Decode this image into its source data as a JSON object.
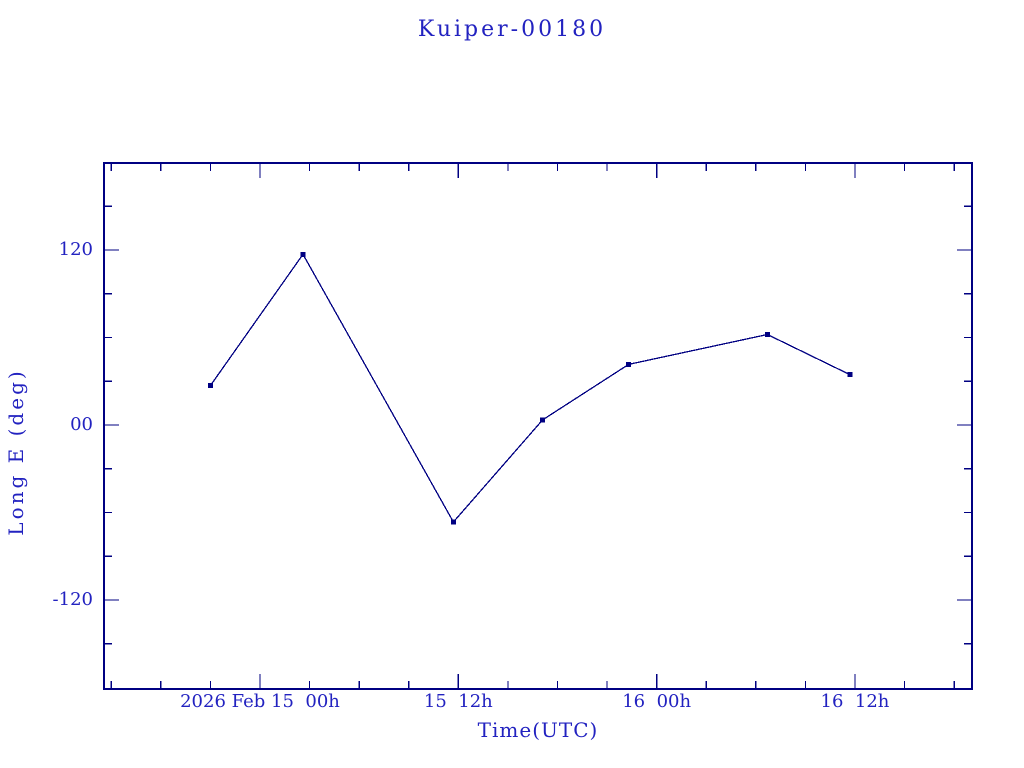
{
  "window": {
    "background": "#ffffff"
  },
  "chart_data": {
    "type": "line",
    "title": "Kuiper-00180",
    "xlabel": "Time(UTC)",
    "ylabel": "Long E (deg)",
    "grid": false,
    "legend": "none",
    "x_axis": {
      "unit": "hours relative to 2026 Feb 15 00h UTC",
      "range": [
        -9.5,
        43.14
      ],
      "major_ticks": [
        {
          "t": 0,
          "label": "2026 Feb 15  00h"
        },
        {
          "t": 12,
          "label": "15  12h"
        },
        {
          "t": 24,
          "label": "16  00h"
        },
        {
          "t": 36,
          "label": "16  12h"
        }
      ],
      "minor_ticks": [
        -9,
        -6,
        -3,
        3,
        6,
        9,
        15,
        18,
        21,
        27,
        30,
        33,
        39,
        42
      ]
    },
    "y_axis": {
      "unit": "deg",
      "range": [
        -181.7,
        180.3
      ],
      "major_ticks": [
        {
          "v": 120,
          "label": "120"
        },
        {
          "v": 0,
          "label": "00"
        },
        {
          "v": -120,
          "label": "-120"
        }
      ],
      "minor_ticks": [
        -150,
        -90,
        -60,
        -30,
        30,
        60,
        90,
        150
      ]
    },
    "series": [
      {
        "name": "Long E",
        "marker": "filled-square",
        "points": [
          {
            "t": -3.0,
            "v": 27.0
          },
          {
            "t": 2.6,
            "v": 117.0
          },
          {
            "t": 11.7,
            "v": -66.5
          },
          {
            "t": 17.1,
            "v": 3.5
          },
          {
            "t": 22.3,
            "v": 41.5
          },
          {
            "t": 30.7,
            "v": 62.0
          },
          {
            "t": 35.7,
            "v": 34.5
          }
        ]
      }
    ],
    "colors": {
      "line": "#000082",
      "text": "#2222c0",
      "background": "#ffffff"
    }
  }
}
